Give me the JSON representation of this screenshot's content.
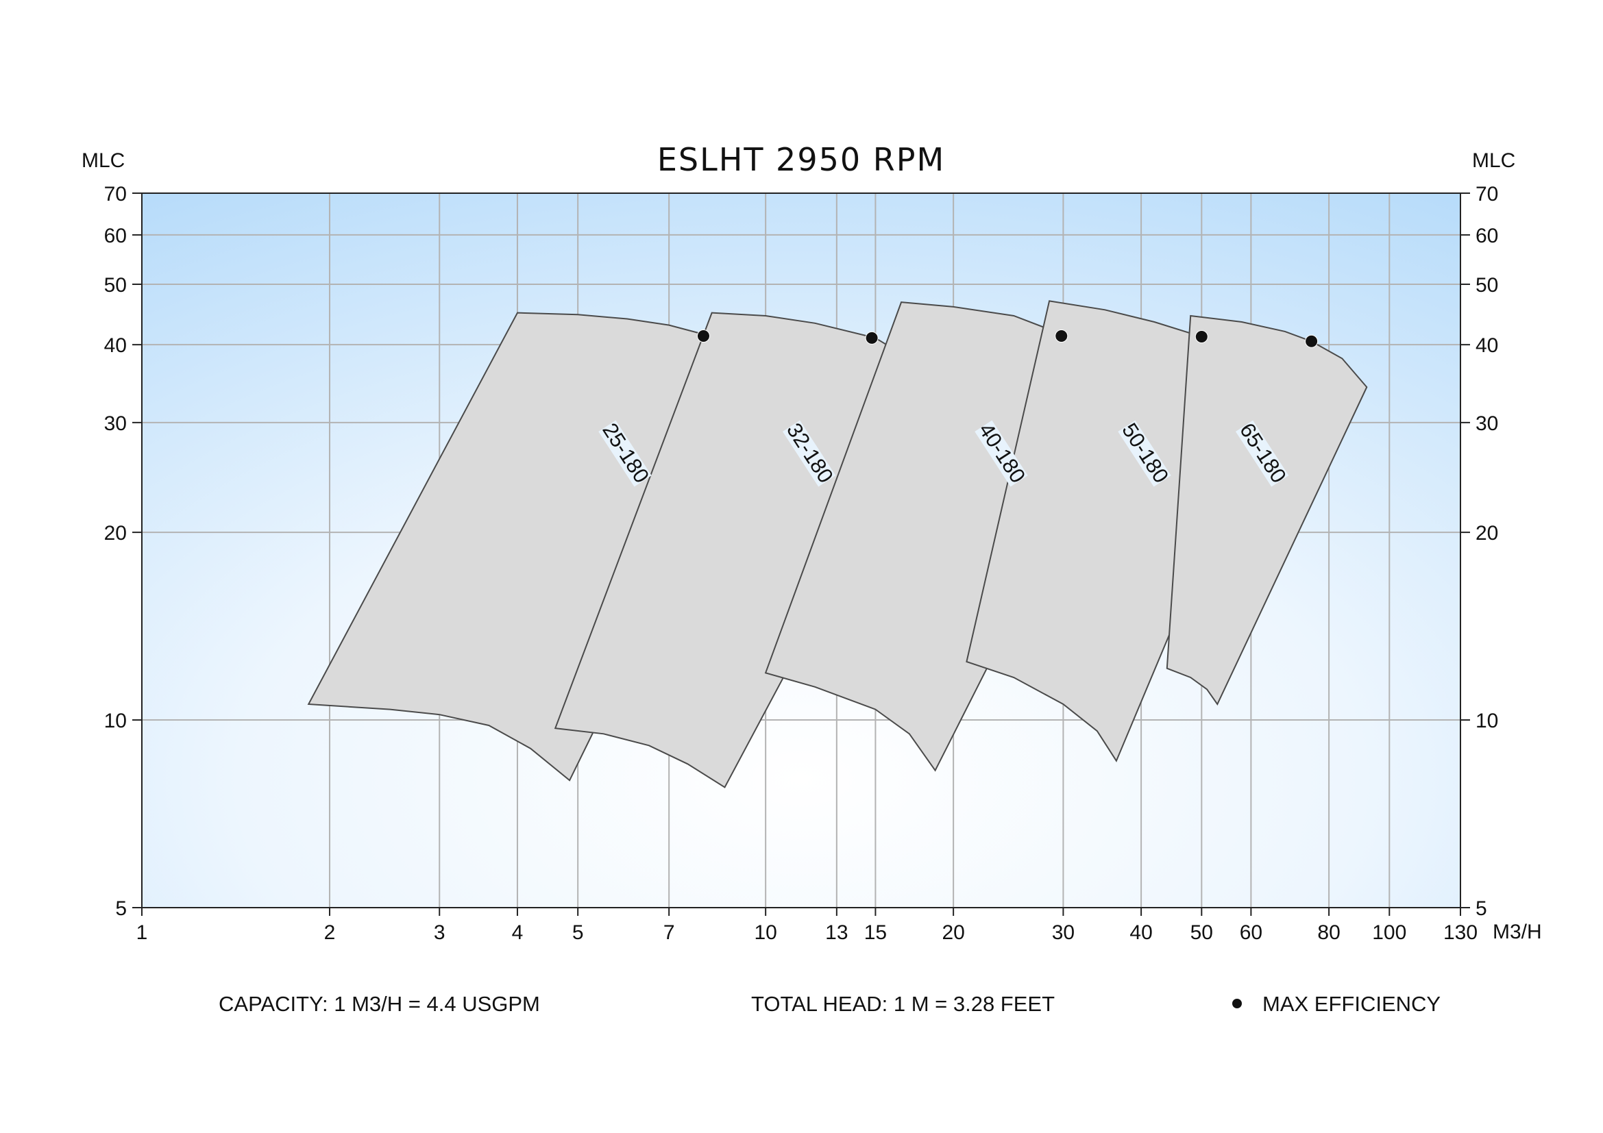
{
  "chart_data": {
    "type": "area",
    "title": "ESLHT 2950 RPM",
    "xlabel": "M3/H",
    "ylabel_left": "MLC",
    "ylabel_right": "MLC",
    "x_scale": "log",
    "y_scale": "log",
    "xlim": [
      1,
      130
    ],
    "ylim": [
      5,
      70
    ],
    "x_ticks": [
      1,
      2,
      3,
      4,
      5,
      7,
      10,
      13,
      15,
      20,
      30,
      40,
      50,
      60,
      80,
      100,
      130
    ],
    "y_ticks_left": [
      5,
      10,
      20,
      30,
      40,
      50,
      60,
      70
    ],
    "y_ticks_right": [
      5,
      10,
      20,
      30,
      40,
      50,
      60,
      70
    ],
    "grid": true,
    "series": [
      {
        "name": "25-180",
        "top": [
          [
            4.0,
            45.0
          ],
          [
            5.0,
            44.7
          ],
          [
            6.0,
            44.0
          ],
          [
            7.0,
            43.0
          ],
          [
            8.0,
            41.5
          ],
          [
            9.0,
            39.5
          ],
          [
            10.0,
            35.0
          ]
        ],
        "bottom": [
          [
            1.85,
            10.6
          ],
          [
            2.5,
            10.4
          ],
          [
            3.0,
            10.2
          ],
          [
            3.6,
            9.8
          ],
          [
            4.2,
            9.0
          ],
          [
            4.85,
            8.0
          ]
        ],
        "max_efficiency": [
          7.95,
          41.3
        ]
      },
      {
        "name": "32-180",
        "top": [
          [
            8.2,
            45.0
          ],
          [
            10.0,
            44.5
          ],
          [
            12.0,
            43.3
          ],
          [
            15.0,
            41.0
          ],
          [
            17.0,
            38.0
          ],
          [
            19.0,
            34.5
          ]
        ],
        "bottom": [
          [
            4.6,
            9.7
          ],
          [
            5.5,
            9.5
          ],
          [
            6.5,
            9.1
          ],
          [
            7.5,
            8.5
          ],
          [
            8.6,
            7.8
          ]
        ],
        "max_efficiency": [
          14.8,
          41.0
        ]
      },
      {
        "name": "40-180",
        "top": [
          [
            16.5,
            46.8
          ],
          [
            20.0,
            46.0
          ],
          [
            25.0,
            44.5
          ],
          [
            30.0,
            41.5
          ],
          [
            35.0,
            38.0
          ],
          [
            39.0,
            35.5
          ]
        ],
        "bottom": [
          [
            10.0,
            11.9
          ],
          [
            12.0,
            11.3
          ],
          [
            15.0,
            10.4
          ],
          [
            17.0,
            9.5
          ],
          [
            18.7,
            8.3
          ]
        ],
        "max_efficiency": [
          29.8,
          41.3
        ]
      },
      {
        "name": "50-180",
        "top": [
          [
            28.5,
            47.0
          ],
          [
            35.0,
            45.5
          ],
          [
            42.0,
            43.5
          ],
          [
            50.0,
            41.2
          ],
          [
            57.0,
            38.0
          ],
          [
            65.0,
            34.0
          ]
        ],
        "bottom": [
          [
            21.0,
            12.4
          ],
          [
            25.0,
            11.7
          ],
          [
            30.0,
            10.6
          ],
          [
            34.0,
            9.6
          ],
          [
            36.5,
            8.6
          ]
        ],
        "max_efficiency": [
          50.0,
          41.2
        ]
      },
      {
        "name": "65-180",
        "top": [
          [
            48.0,
            44.5
          ],
          [
            58.0,
            43.5
          ],
          [
            68.0,
            42.0
          ],
          [
            75.0,
            40.5
          ],
          [
            84.0,
            38.0
          ],
          [
            92.0,
            34.2
          ]
        ],
        "bottom": [
          [
            44.0,
            12.1
          ],
          [
            48.0,
            11.7
          ],
          [
            51.0,
            11.2
          ],
          [
            53.0,
            10.6
          ]
        ],
        "max_efficiency": [
          75.0,
          40.5
        ]
      }
    ],
    "legend": {
      "position": "bottom-right",
      "label": "MAX EFFICIENCY"
    },
    "footer_notes": [
      "CAPACITY: 1 M3/H = 4.4 USGPM",
      "TOTAL HEAD: 1 M = 3.28 FEET"
    ]
  },
  "colors": {
    "background_edge": "#b8dcfa",
    "background_center": "#ffffff",
    "region_fill": "#dadada",
    "region_stroke": "#4a4a4a",
    "grid": "#b3b3b3",
    "label_background": "#e8f3fc"
  }
}
